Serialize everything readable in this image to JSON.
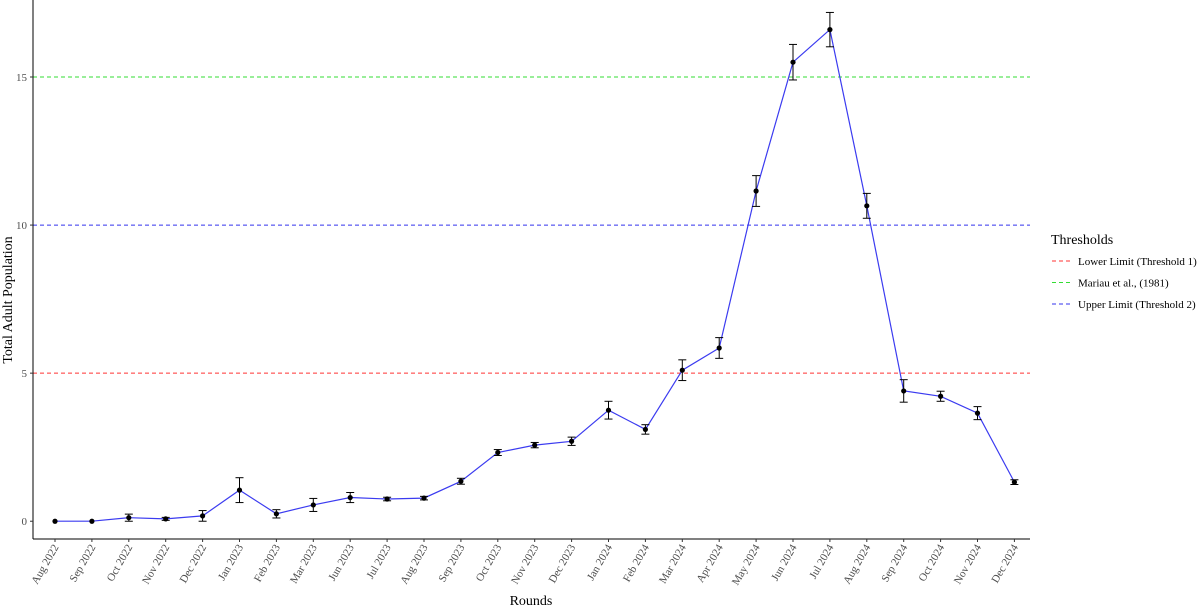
{
  "chart_data": {
    "type": "line",
    "title": "",
    "xlabel": "Rounds",
    "ylabel": "Total Adult Population",
    "ylim": [
      -0.6,
      17.6
    ],
    "yticks": [
      0,
      5,
      10,
      15
    ],
    "grid": false,
    "legend_position": "right",
    "categories": [
      "Aug 2022",
      "Sep 2022",
      "Oct 2022",
      "Nov 2022",
      "Dec 2022",
      "Jan 2023",
      "Feb 2023",
      "Mar 2023",
      "Jun 2023",
      "Jul 2023",
      "Aug 2023",
      "Sep 2023",
      "Oct 2023",
      "Nov 2023",
      "Dec 2023",
      "Jan 2024",
      "Feb 2024",
      "Mar 2024",
      "Apr 2024",
      "May 2024",
      "Jun 2024",
      "Jul 2024",
      "Aug 2024",
      "Sep 2024",
      "Oct 2024",
      "Nov 2024",
      "Dec 2024"
    ],
    "series": [
      {
        "color": "#3b3bf0",
        "values": [
          0.0,
          0.0,
          0.12,
          0.08,
          0.18,
          1.05,
          0.25,
          0.55,
          0.8,
          0.75,
          0.78,
          1.35,
          2.32,
          2.57,
          2.7,
          3.75,
          3.1,
          5.1,
          5.85,
          11.15,
          15.5,
          16.6,
          10.65,
          4.4,
          4.22,
          3.65,
          1.32
        ],
        "error": [
          0.02,
          0.02,
          0.12,
          0.05,
          0.18,
          0.42,
          0.14,
          0.22,
          0.17,
          0.06,
          0.06,
          0.1,
          0.1,
          0.09,
          0.14,
          0.3,
          0.16,
          0.35,
          0.35,
          0.52,
          0.6,
          0.58,
          0.42,
          0.38,
          0.17,
          0.22,
          0.08
        ]
      }
    ],
    "thresholds": [
      {
        "name": "Lower Limit (Threshold 1)",
        "value": 5,
        "color": "#ff3333"
      },
      {
        "name": "Mariau et al., (1981)",
        "value": 15,
        "color": "#33dd33"
      },
      {
        "name": "Upper Limit (Threshold 2)",
        "value": 10,
        "color": "#3333ee"
      }
    ],
    "legend": {
      "title": "Thresholds",
      "entries": [
        "Lower Limit (Threshold 1)",
        "Mariau et al., (1981)",
        "Upper Limit (Threshold 2)"
      ]
    }
  }
}
